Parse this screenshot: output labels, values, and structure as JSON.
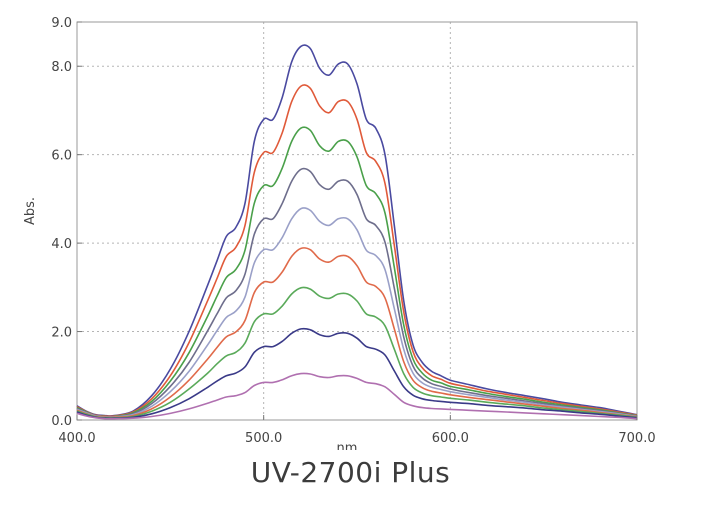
{
  "caption": "UV-2700i Plus",
  "chart_data": {
    "type": "line",
    "title": "",
    "xlabel": "nm",
    "ylabel": "Abs.",
    "xlim": [
      400,
      700
    ],
    "ylim": [
      0,
      9
    ],
    "x_ticks": [
      400,
      500,
      600,
      700
    ],
    "x_tick_labels": [
      "400.0",
      "500.0",
      "600.0",
      "700.0"
    ],
    "y_ticks": [
      0,
      2,
      4,
      6,
      8,
      9
    ],
    "y_tick_labels": [
      "0.0",
      "2.0",
      "4.0",
      "6.0",
      "8.0",
      "9.0"
    ],
    "grid": true,
    "legend": "none",
    "x": [
      400,
      405,
      410,
      415,
      420,
      430,
      440,
      450,
      460,
      470,
      475,
      480,
      485,
      490,
      495,
      500,
      505,
      510,
      515,
      520,
      525,
      530,
      535,
      540,
      545,
      550,
      555,
      560,
      565,
      570,
      575,
      580,
      585,
      590,
      595,
      600,
      610,
      620,
      630,
      640,
      650,
      660,
      670,
      680,
      690,
      700
    ],
    "series": [
      {
        "color": "#4a4aa0",
        "values": [
          0.32,
          0.2,
          0.12,
          0.1,
          0.1,
          0.2,
          0.55,
          1.15,
          2.0,
          3.05,
          3.6,
          4.15,
          4.35,
          4.9,
          6.3,
          6.8,
          6.8,
          7.3,
          8.1,
          8.45,
          8.4,
          7.95,
          7.8,
          8.05,
          8.05,
          7.6,
          6.8,
          6.6,
          6.0,
          4.4,
          2.7,
          1.7,
          1.3,
          1.1,
          1.0,
          0.9,
          0.8,
          0.7,
          0.62,
          0.55,
          0.48,
          0.4,
          0.34,
          0.28,
          0.2,
          0.12
        ]
      },
      {
        "color": "#e05a3a",
        "values": [
          0.3,
          0.19,
          0.11,
          0.09,
          0.09,
          0.18,
          0.48,
          1.0,
          1.75,
          2.7,
          3.2,
          3.7,
          3.9,
          4.4,
          5.6,
          6.05,
          6.05,
          6.5,
          7.2,
          7.55,
          7.5,
          7.1,
          6.95,
          7.2,
          7.2,
          6.8,
          6.05,
          5.85,
          5.35,
          3.95,
          2.45,
          1.55,
          1.18,
          1.0,
          0.92,
          0.83,
          0.74,
          0.65,
          0.58,
          0.51,
          0.44,
          0.37,
          0.31,
          0.25,
          0.18,
          0.11
        ]
      },
      {
        "color": "#4aa04a",
        "values": [
          0.28,
          0.18,
          0.1,
          0.08,
          0.08,
          0.16,
          0.42,
          0.88,
          1.52,
          2.35,
          2.8,
          3.22,
          3.4,
          3.84,
          4.9,
          5.3,
          5.3,
          5.7,
          6.3,
          6.6,
          6.55,
          6.2,
          6.08,
          6.3,
          6.3,
          5.95,
          5.3,
          5.12,
          4.68,
          3.45,
          2.15,
          1.38,
          1.06,
          0.9,
          0.84,
          0.76,
          0.68,
          0.6,
          0.53,
          0.47,
          0.4,
          0.34,
          0.28,
          0.23,
          0.16,
          0.1
        ]
      },
      {
        "color": "#6e6e8c",
        "values": [
          0.26,
          0.17,
          0.1,
          0.07,
          0.07,
          0.14,
          0.37,
          0.76,
          1.3,
          2.02,
          2.4,
          2.76,
          2.92,
          3.3,
          4.2,
          4.55,
          4.55,
          4.9,
          5.4,
          5.67,
          5.62,
          5.32,
          5.22,
          5.4,
          5.4,
          5.1,
          4.55,
          4.4,
          4.02,
          2.98,
          1.88,
          1.22,
          0.95,
          0.82,
          0.76,
          0.7,
          0.62,
          0.55,
          0.49,
          0.43,
          0.37,
          0.31,
          0.26,
          0.21,
          0.15,
          0.09
        ]
      },
      {
        "color": "#9aa0c8",
        "values": [
          0.24,
          0.16,
          0.09,
          0.07,
          0.07,
          0.12,
          0.31,
          0.64,
          1.1,
          1.7,
          2.02,
          2.32,
          2.46,
          2.78,
          3.55,
          3.85,
          3.85,
          4.13,
          4.55,
          4.78,
          4.74,
          4.49,
          4.4,
          4.55,
          4.55,
          4.3,
          3.84,
          3.72,
          3.4,
          2.52,
          1.6,
          1.06,
          0.84,
          0.74,
          0.69,
          0.64,
          0.57,
          0.51,
          0.45,
          0.4,
          0.34,
          0.29,
          0.24,
          0.19,
          0.14,
          0.08
        ]
      },
      {
        "color": "#e06a4a",
        "values": [
          0.22,
          0.14,
          0.08,
          0.06,
          0.06,
          0.1,
          0.25,
          0.52,
          0.9,
          1.38,
          1.64,
          1.88,
          1.99,
          2.25,
          2.88,
          3.12,
          3.12,
          3.35,
          3.7,
          3.88,
          3.85,
          3.64,
          3.57,
          3.7,
          3.7,
          3.49,
          3.12,
          3.02,
          2.76,
          2.06,
          1.32,
          0.9,
          0.73,
          0.65,
          0.61,
          0.57,
          0.51,
          0.46,
          0.41,
          0.36,
          0.31,
          0.26,
          0.22,
          0.17,
          0.12,
          0.07
        ]
      },
      {
        "color": "#5aaa5a",
        "values": [
          0.2,
          0.13,
          0.07,
          0.05,
          0.05,
          0.08,
          0.2,
          0.4,
          0.7,
          1.06,
          1.27,
          1.45,
          1.53,
          1.74,
          2.22,
          2.4,
          2.4,
          2.58,
          2.85,
          2.99,
          2.96,
          2.8,
          2.75,
          2.85,
          2.85,
          2.69,
          2.4,
          2.33,
          2.13,
          1.6,
          1.05,
          0.74,
          0.61,
          0.55,
          0.52,
          0.49,
          0.45,
          0.4,
          0.36,
          0.32,
          0.27,
          0.23,
          0.19,
          0.15,
          0.11,
          0.06
        ]
      },
      {
        "color": "#3a3a88",
        "values": [
          0.18,
          0.11,
          0.06,
          0.04,
          0.04,
          0.06,
          0.14,
          0.28,
          0.48,
          0.74,
          0.88,
          1.0,
          1.06,
          1.2,
          1.53,
          1.66,
          1.66,
          1.78,
          1.96,
          2.06,
          2.04,
          1.93,
          1.89,
          1.96,
          1.96,
          1.85,
          1.66,
          1.6,
          1.47,
          1.11,
          0.75,
          0.56,
          0.48,
          0.44,
          0.42,
          0.4,
          0.37,
          0.33,
          0.3,
          0.27,
          0.23,
          0.2,
          0.16,
          0.13,
          0.09,
          0.05
        ]
      },
      {
        "color": "#b070b0",
        "values": [
          0.15,
          0.09,
          0.05,
          0.03,
          0.03,
          0.04,
          0.08,
          0.15,
          0.25,
          0.38,
          0.45,
          0.52,
          0.55,
          0.62,
          0.78,
          0.85,
          0.85,
          0.91,
          1.0,
          1.05,
          1.04,
          0.98,
          0.96,
          1.0,
          1.0,
          0.94,
          0.85,
          0.82,
          0.75,
          0.58,
          0.4,
          0.32,
          0.28,
          0.26,
          0.25,
          0.24,
          0.22,
          0.2,
          0.18,
          0.16,
          0.14,
          0.12,
          0.1,
          0.08,
          0.06,
          0.03
        ]
      }
    ]
  }
}
